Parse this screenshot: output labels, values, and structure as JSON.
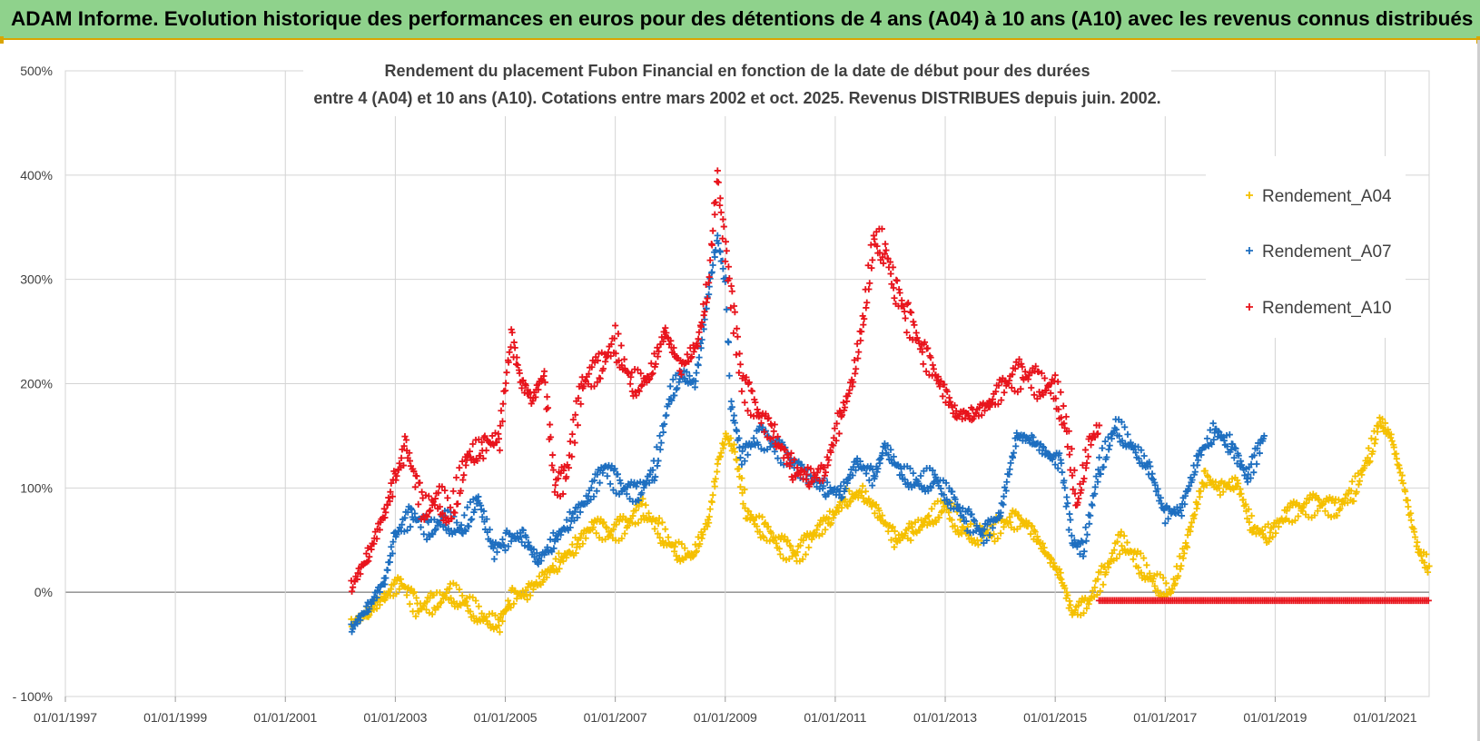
{
  "banner": {
    "title": "ADAM Informe. Evolution historique des performances en euros pour des détentions de 4 ans (A04) à 10 ans (A10) avec les revenus connus distribués"
  },
  "colors": {
    "banner_bg": "#8fd28c",
    "banner_border": "#d9a400",
    "series_A04": "#f5c000",
    "series_A07": "#1e6fc0",
    "series_A10": "#e8141c",
    "grid": "#d4d4d4"
  },
  "chart_data": {
    "type": "scatter",
    "marker": "plus",
    "title_line1": "Rendement du placement Fubon Financial  en fonction de la date de début pour des durées",
    "title_line2": "entre 4 (A04) et 10 ans (A10).  Cotations entre mars 2002 et oct. 2025. Revenus DISTRIBUES depuis juin. 2002.",
    "xlabel": "",
    "ylabel": "",
    "xlim": [
      1997.0,
      2021.8
    ],
    "ylim": [
      -100,
      500
    ],
    "y_ticks": [
      -100,
      0,
      100,
      200,
      300,
      400,
      500
    ],
    "y_tick_labels": [
      "- 100%",
      "0%",
      "100%",
      "200%",
      "300%",
      "400%",
      "500%"
    ],
    "x_ticks": [
      1997,
      1999,
      2001,
      2003,
      2005,
      2007,
      2009,
      2011,
      2013,
      2015,
      2017,
      2019,
      2021
    ],
    "x_tick_labels": [
      "01/01/1997",
      "01/01/1999",
      "01/01/2001",
      "01/01/2003",
      "01/01/2005",
      "01/01/2007",
      "01/01/2009",
      "01/01/2011",
      "01/01/2013",
      "01/01/2015",
      "01/01/2017",
      "01/01/2019",
      "01/01/2021"
    ],
    "grid": "on",
    "legend_position": "right",
    "series": [
      {
        "name": "Rendement_A04",
        "color": "#f5c000",
        "x": [
          2002.2,
          2002.5,
          2002.8,
          2003.1,
          2003.4,
          2003.7,
          2004.0,
          2004.3,
          2004.6,
          2004.9,
          2005.1,
          2005.4,
          2005.7,
          2006.0,
          2006.3,
          2006.6,
          2006.9,
          2007.2,
          2007.5,
          2007.8,
          2008.1,
          2008.4,
          2008.7,
          2008.85,
          2009.0,
          2009.15,
          2009.4,
          2009.7,
          2010.0,
          2010.3,
          2010.6,
          2010.9,
          2011.2,
          2011.5,
          2011.8,
          2012.1,
          2012.4,
          2012.7,
          2013.0,
          2013.3,
          2013.6,
          2013.9,
          2014.2,
          2014.5,
          2014.8,
          2015.1,
          2015.3,
          2015.6,
          2015.9,
          2016.2,
          2016.5,
          2016.8,
          2017.1,
          2017.4,
          2017.7,
          2018.0,
          2018.3,
          2018.6,
          2018.9,
          2019.2,
          2019.5,
          2019.8,
          2020.1,
          2020.4,
          2020.7,
          2020.9,
          2021.1,
          2021.3,
          2021.6,
          2021.8
        ],
        "values": [
          -30,
          -20,
          -5,
          10,
          -15,
          -10,
          0,
          -10,
          -25,
          -30,
          -5,
          0,
          15,
          30,
          45,
          65,
          55,
          65,
          80,
          60,
          40,
          35,
          70,
          120,
          150,
          140,
          75,
          60,
          45,
          35,
          55,
          70,
          90,
          95,
          75,
          50,
          60,
          70,
          85,
          60,
          55,
          60,
          70,
          65,
          40,
          15,
          -20,
          -10,
          20,
          50,
          30,
          10,
          0,
          50,
          110,
          100,
          105,
          60,
          55,
          75,
          80,
          85,
          80,
          95,
          130,
          165,
          150,
          110,
          40,
          25
        ]
      },
      {
        "name": "Rendement_A07",
        "color": "#1e6fc0",
        "x": [
          2002.2,
          2002.5,
          2002.8,
          2003.0,
          2003.3,
          2003.6,
          2003.9,
          2004.2,
          2004.5,
          2004.8,
          2005.0,
          2005.3,
          2005.6,
          2005.9,
          2006.2,
          2006.5,
          2006.8,
          2007.1,
          2007.4,
          2007.7,
          2008.0,
          2008.2,
          2008.45,
          2008.7,
          2008.85,
          2009.0,
          2009.1,
          2009.3,
          2009.6,
          2009.9,
          2010.2,
          2010.5,
          2010.8,
          2011.1,
          2011.4,
          2011.7,
          2011.9,
          2012.2,
          2012.5,
          2012.8,
          2013.1,
          2013.4,
          2013.7,
          2014.0,
          2014.3,
          2014.6,
          2014.9,
          2015.1,
          2015.3,
          2015.5,
          2015.8,
          2016.1,
          2016.4,
          2016.7,
          2017.0,
          2017.3,
          2017.6,
          2017.9,
          2018.2,
          2018.5,
          2018.8
        ],
        "values": [
          -35,
          -15,
          10,
          55,
          75,
          60,
          70,
          60,
          90,
          40,
          50,
          55,
          30,
          50,
          70,
          90,
          120,
          100,
          95,
          115,
          190,
          210,
          200,
          290,
          340,
          300,
          180,
          130,
          150,
          140,
          125,
          110,
          100,
          95,
          125,
          110,
          140,
          115,
          105,
          110,
          90,
          70,
          55,
          75,
          150,
          145,
          130,
          125,
          50,
          40,
          120,
          160,
          140,
          120,
          75,
          80,
          130,
          155,
          140,
          110,
          150
        ]
      },
      {
        "name": "Rendement_A10",
        "color": "#e8141c",
        "x": [
          2002.2,
          2002.5,
          2002.8,
          2003.0,
          2003.2,
          2003.5,
          2003.8,
          2004.0,
          2004.3,
          2004.6,
          2004.9,
          2005.1,
          2005.3,
          2005.5,
          2005.7,
          2005.9,
          2006.1,
          2006.4,
          2006.7,
          2007.0,
          2007.3,
          2007.6,
          2007.9,
          2008.2,
          2008.5,
          2008.7,
          2008.85,
          2008.95,
          2009.1,
          2009.3,
          2009.6,
          2009.9,
          2010.2,
          2010.5,
          2010.8,
          2011.1,
          2011.3,
          2011.5,
          2011.7,
          2011.9,
          2012.1,
          2012.3,
          2012.6,
          2012.9,
          2013.2,
          2013.5,
          2013.8,
          2014.1,
          2014.4,
          2014.7,
          2015.0,
          2015.2,
          2015.4,
          2015.6,
          2015.8
        ],
        "values": [
          5,
          35,
          75,
          110,
          140,
          80,
          90,
          75,
          130,
          140,
          150,
          245,
          200,
          185,
          210,
          100,
          110,
          200,
          215,
          240,
          200,
          205,
          250,
          215,
          240,
          300,
          400,
          350,
          285,
          200,
          170,
          150,
          120,
          110,
          115,
          170,
          200,
          260,
          340,
          330,
          290,
          265,
          230,
          200,
          170,
          170,
          180,
          200,
          210,
          200,
          195,
          160,
          85,
          140,
          160
        ]
      }
    ],
    "flat_line": {
      "series": "Rendement_A10",
      "x_start": 2015.8,
      "x_end": 2021.8,
      "value": -8
    }
  }
}
